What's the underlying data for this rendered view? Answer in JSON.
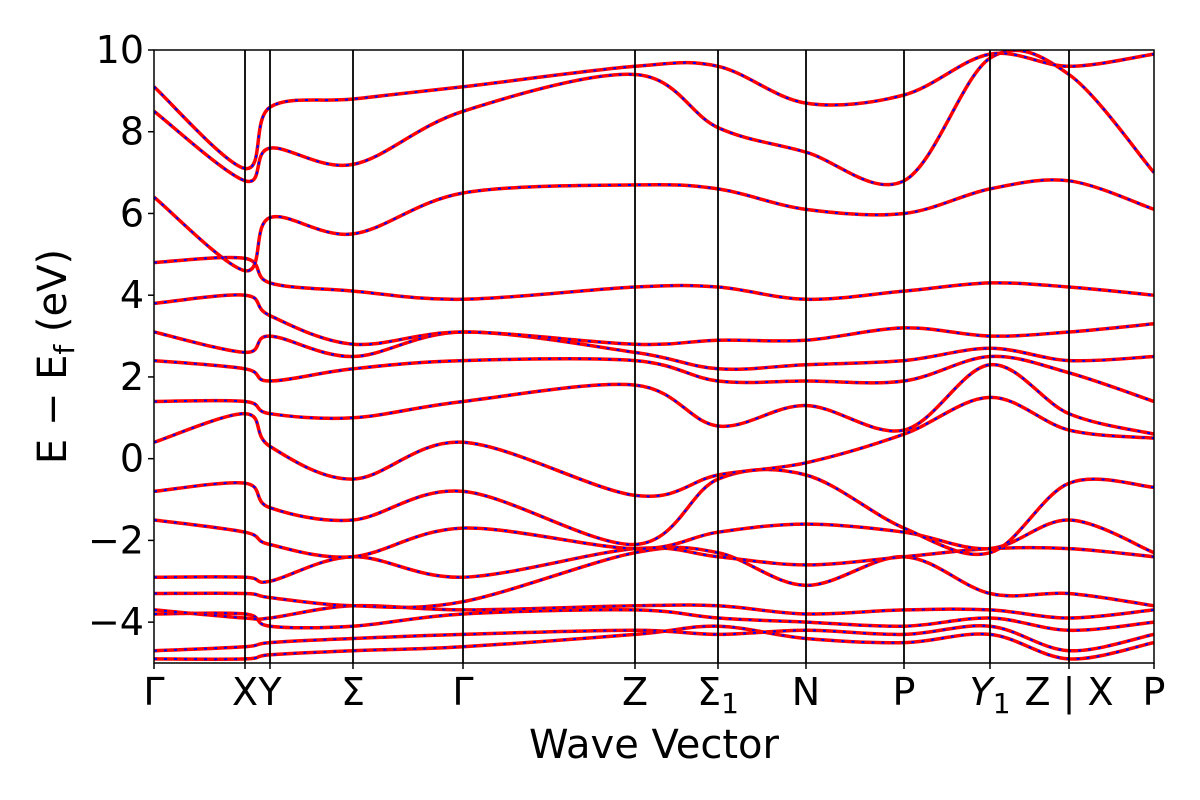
{
  "chart_data": {
    "type": "line",
    "title": "",
    "xlabel": "Wave Vector",
    "ylabel": "E − E_f (eV)",
    "ylabel_parts": {
      "main": "E  −  E",
      "sub": "f",
      "unit": " (eV)"
    },
    "ylim": [
      -5,
      10
    ],
    "yticks": [
      -4,
      -2,
      0,
      2,
      4,
      6,
      8,
      10
    ],
    "ytick_labels": [
      "−4",
      "−2",
      "0",
      "2",
      "4",
      "6",
      "8",
      "10"
    ],
    "xlim": [
      0,
      1
    ],
    "high_symmetry_points": [
      {
        "x": 0.0,
        "label": "Γ"
      },
      {
        "x": 0.091,
        "label": "X"
      },
      {
        "x": 0.116,
        "label": "Y"
      },
      {
        "x": 0.199,
        "label": "Σ"
      },
      {
        "x": 0.309,
        "label": "Γ"
      },
      {
        "x": 0.481,
        "label": "Z"
      },
      {
        "x": 0.564,
        "label": "Σ",
        "sub": "1"
      },
      {
        "x": 0.652,
        "label": "N"
      },
      {
        "x": 0.75,
        "label": "P"
      },
      {
        "x": 0.836,
        "label": "Y",
        "sub": "1",
        "italic": true
      },
      {
        "x": 0.915,
        "label": "Z | X"
      },
      {
        "x": 1.0,
        "label": "P"
      }
    ],
    "series_colors": {
      "band_a": "#ff0000",
      "band_b": "#0000ff"
    },
    "x": [
      0.0,
      0.091,
      0.116,
      0.199,
      0.309,
      0.481,
      0.564,
      0.652,
      0.75,
      0.836,
      0.915,
      1.0
    ],
    "series": [
      {
        "values": [
          -4.9,
          -4.9,
          -4.8,
          -4.7,
          -4.6,
          -4.3,
          -4.1,
          -4.4,
          -4.5,
          -4.3,
          -4.9,
          -4.5
        ]
      },
      {
        "values": [
          -4.7,
          -4.6,
          -4.5,
          -4.4,
          -4.3,
          -4.2,
          -4.3,
          -4.2,
          -4.3,
          -4.1,
          -4.7,
          -4.3
        ]
      },
      {
        "values": [
          -3.8,
          -3.8,
          -4.1,
          -4.1,
          -3.8,
          -3.7,
          -3.9,
          -4.0,
          -4.1,
          -3.9,
          -4.2,
          -4.0
        ]
      },
      {
        "values": [
          -3.7,
          -3.9,
          -3.9,
          -3.6,
          -3.7,
          -3.6,
          -3.6,
          -3.8,
          -3.7,
          -3.7,
          -3.9,
          -3.7
        ]
      },
      {
        "values": [
          -3.3,
          -3.3,
          -3.4,
          -3.6,
          -3.5,
          -2.3,
          -2.3,
          -3.1,
          -2.4,
          -3.3,
          -3.3,
          -3.6
        ]
      },
      {
        "values": [
          -2.9,
          -2.9,
          -3.0,
          -2.4,
          -2.9,
          -2.2,
          -2.4,
          -2.6,
          -2.4,
          -2.2,
          -2.2,
          -2.4
        ]
      },
      {
        "values": [
          -1.5,
          -1.8,
          -2.1,
          -2.4,
          -1.7,
          -2.2,
          -1.8,
          -1.6,
          -1.8,
          -2.2,
          -1.5,
          -2.3
        ]
      },
      {
        "values": [
          -0.8,
          -0.6,
          -1.2,
          -1.5,
          -0.8,
          -2.1,
          -0.5,
          -0.4,
          -1.7,
          -2.3,
          -0.6,
          -0.7
        ]
      },
      {
        "values": [
          0.4,
          1.1,
          0.3,
          -0.5,
          0.4,
          -0.9,
          -0.4,
          -0.1,
          0.6,
          1.5,
          0.7,
          0.5
        ]
      },
      {
        "values": [
          1.4,
          1.4,
          1.1,
          1.0,
          1.4,
          1.8,
          0.8,
          1.3,
          0.7,
          2.3,
          1.1,
          0.6
        ]
      },
      {
        "values": [
          2.4,
          2.2,
          1.9,
          2.2,
          2.4,
          2.4,
          1.9,
          1.9,
          1.9,
          2.5,
          2.1,
          1.4
        ]
      },
      {
        "values": [
          3.1,
          2.6,
          3.0,
          2.5,
          3.1,
          2.6,
          2.2,
          2.3,
          2.4,
          2.7,
          2.4,
          2.5
        ]
      },
      {
        "values": [
          3.8,
          4.0,
          3.5,
          2.8,
          3.1,
          2.8,
          2.9,
          2.9,
          3.2,
          3.0,
          3.1,
          3.3
        ]
      },
      {
        "values": [
          4.8,
          4.9,
          4.3,
          4.1,
          3.9,
          4.2,
          4.2,
          3.9,
          4.1,
          4.3,
          4.2,
          4.0
        ]
      },
      {
        "values": [
          6.4,
          4.6,
          5.9,
          5.5,
          6.5,
          6.7,
          6.6,
          6.1,
          6.0,
          6.6,
          6.8,
          6.1
        ]
      },
      {
        "values": [
          8.5,
          6.8,
          7.6,
          7.2,
          8.5,
          9.4,
          8.1,
          7.5,
          6.8,
          9.8,
          9.4,
          7.0
        ]
      },
      {
        "values": [
          9.1,
          7.1,
          8.6,
          8.8,
          9.1,
          9.6,
          9.6,
          8.7,
          8.9,
          9.9,
          9.6,
          9.9
        ]
      }
    ]
  }
}
